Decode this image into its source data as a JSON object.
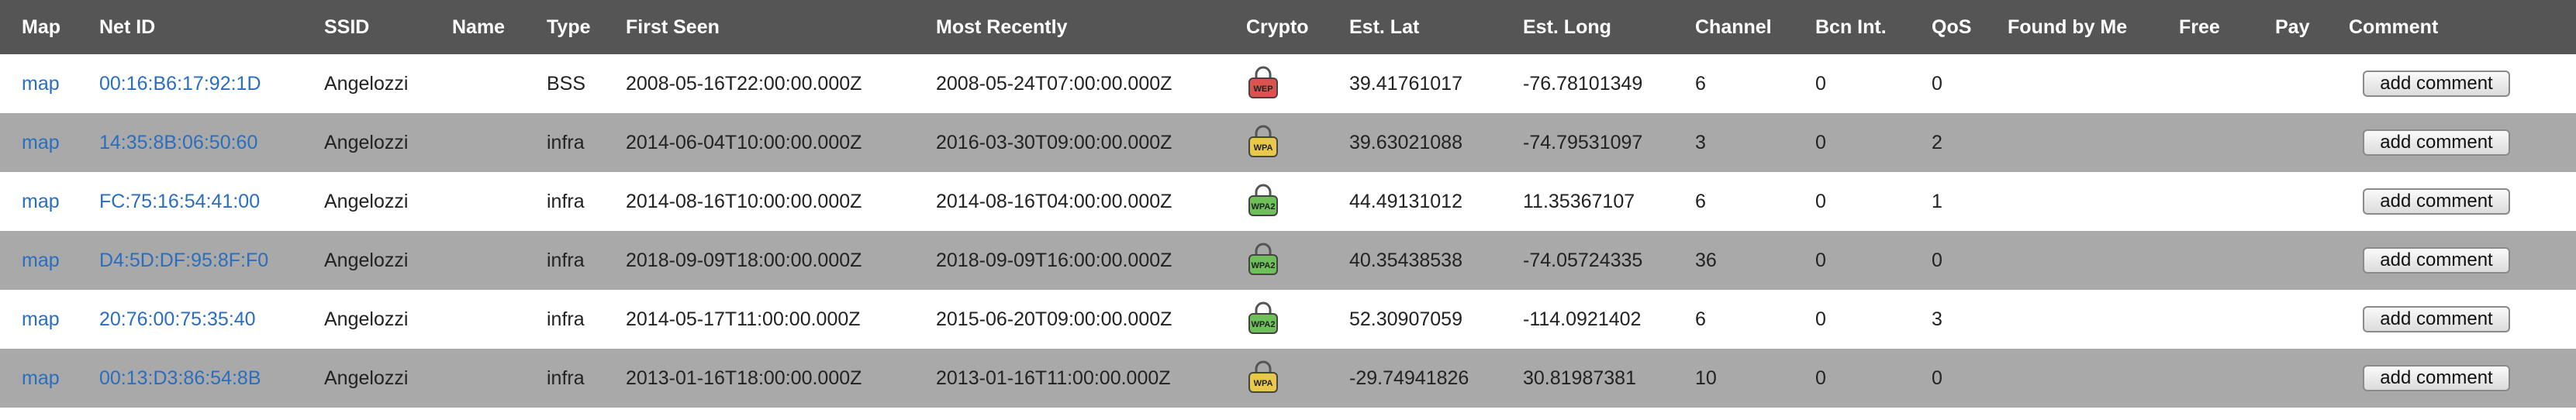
{
  "headers": {
    "map": "Map",
    "net_id": "Net ID",
    "ssid": "SSID",
    "name": "Name",
    "type": "Type",
    "first_seen": "First Seen",
    "most_recently": "Most Recently",
    "crypto": "Crypto",
    "est_lat": "Est. Lat",
    "est_long": "Est. Long",
    "channel": "Channel",
    "bcn_int": "Bcn Int.",
    "qos": "QoS",
    "found_by_me": "Found by Me",
    "free": "Free",
    "pay": "Pay",
    "comment": "Comment"
  },
  "rows": [
    {
      "map": "map",
      "net_id": "00:16:B6:17:92:1D",
      "ssid": "Angelozzi",
      "name": "",
      "type": "BSS",
      "first_seen": "2008-05-16T22:00:00.000Z",
      "most_recently": "2008-05-24T07:00:00.000Z",
      "crypto_label": "WEP",
      "crypto_color": "#d9534f",
      "lat": "39.41761017",
      "long": "-76.78101349",
      "channel": "6",
      "bcn": "0",
      "qos": "0",
      "found": "",
      "free": "",
      "pay": "",
      "comment_label": "add comment"
    },
    {
      "map": "map",
      "net_id": "14:35:8B:06:50:60",
      "ssid": "Angelozzi",
      "name": "",
      "type": "infra",
      "first_seen": "2014-06-04T10:00:00.000Z",
      "most_recently": "2016-03-30T09:00:00.000Z",
      "crypto_label": "WPA",
      "crypto_color": "#e8c84a",
      "lat": "39.63021088",
      "long": "-74.79531097",
      "channel": "3",
      "bcn": "0",
      "qos": "2",
      "found": "",
      "free": "",
      "pay": "",
      "comment_label": "add comment"
    },
    {
      "map": "map",
      "net_id": "FC:75:16:54:41:00",
      "ssid": "Angelozzi",
      "name": "",
      "type": "infra",
      "first_seen": "2014-08-16T10:00:00.000Z",
      "most_recently": "2014-08-16T04:00:00.000Z",
      "crypto_label": "WPA2",
      "crypto_color": "#6fbf5a",
      "lat": "44.49131012",
      "long": "11.35367107",
      "channel": "6",
      "bcn": "0",
      "qos": "1",
      "found": "",
      "free": "",
      "pay": "",
      "comment_label": "add comment"
    },
    {
      "map": "map",
      "net_id": "D4:5D:DF:95:8F:F0",
      "ssid": "Angelozzi",
      "name": "",
      "type": "infra",
      "first_seen": "2018-09-09T18:00:00.000Z",
      "most_recently": "2018-09-09T16:00:00.000Z",
      "crypto_label": "WPA2",
      "crypto_color": "#6fbf5a",
      "lat": "40.35438538",
      "long": "-74.05724335",
      "channel": "36",
      "bcn": "0",
      "qos": "0",
      "found": "",
      "free": "",
      "pay": "",
      "comment_label": "add comment"
    },
    {
      "map": "map",
      "net_id": "20:76:00:75:35:40",
      "ssid": "Angelozzi",
      "name": "",
      "type": "infra",
      "first_seen": "2014-05-17T11:00:00.000Z",
      "most_recently": "2015-06-20T09:00:00.000Z",
      "crypto_label": "WPA2",
      "crypto_color": "#6fbf5a",
      "lat": "52.30907059",
      "long": "-114.0921402",
      "channel": "6",
      "bcn": "0",
      "qos": "3",
      "found": "",
      "free": "",
      "pay": "",
      "comment_label": "add comment"
    },
    {
      "map": "map",
      "net_id": "00:13:D3:86:54:8B",
      "ssid": "Angelozzi",
      "name": "",
      "type": "infra",
      "first_seen": "2013-01-16T18:00:00.000Z",
      "most_recently": "2013-01-16T11:00:00.000Z",
      "crypto_label": "WPA",
      "crypto_color": "#e8c84a",
      "lat": "-29.74941826",
      "long": "30.81987381",
      "channel": "10",
      "bcn": "0",
      "qos": "0",
      "found": "",
      "free": "",
      "pay": "",
      "comment_label": "add comment"
    }
  ]
}
